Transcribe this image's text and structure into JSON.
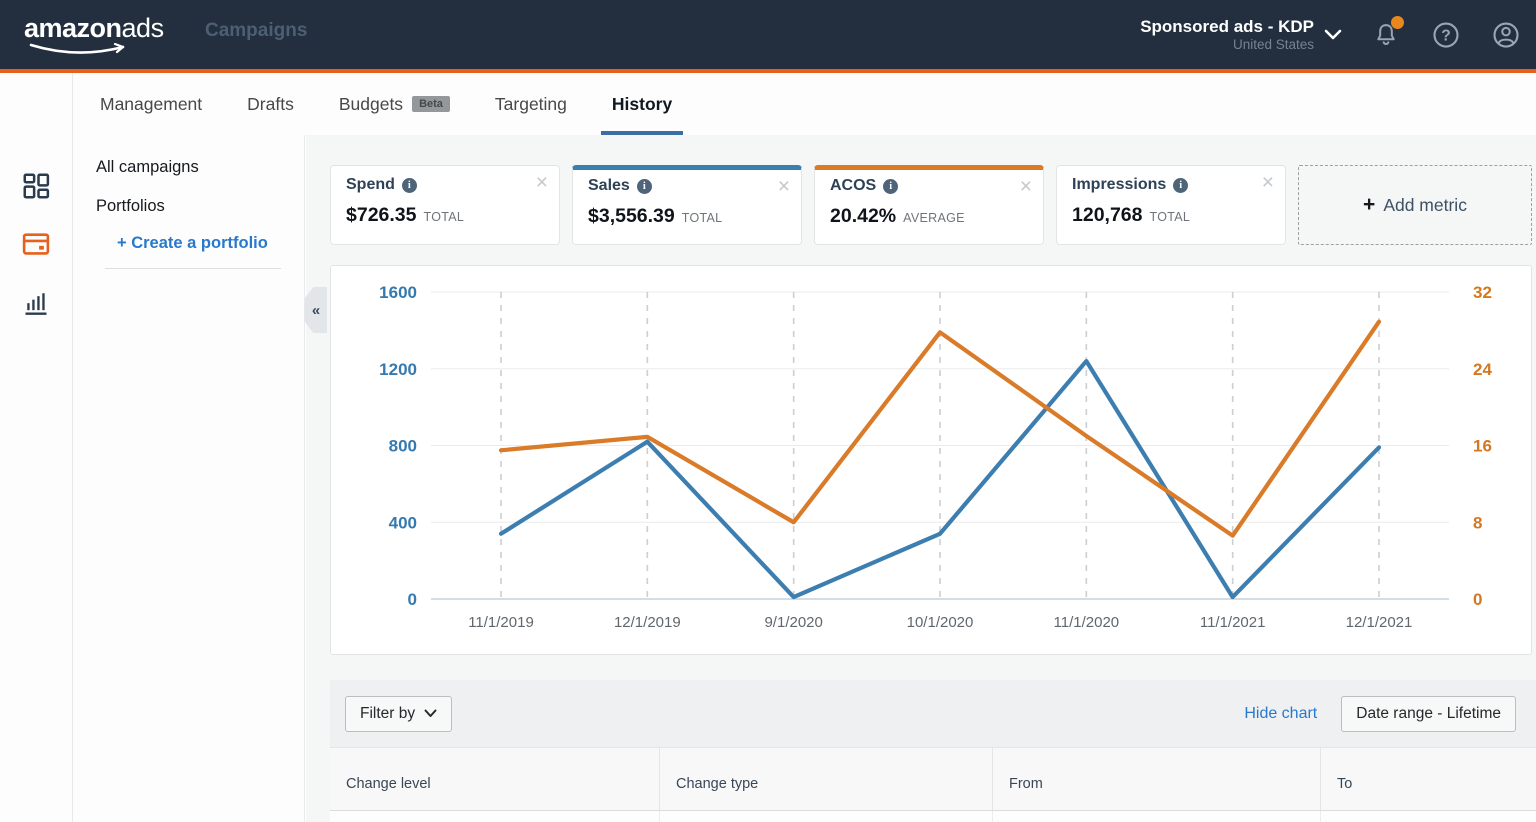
{
  "navbar": {
    "logo_amazon": "amazon",
    "logo_ads": "ads",
    "app_title": "Campaigns",
    "account_name": "Sponsored ads - KDP",
    "account_region": "United States"
  },
  "tabs": [
    {
      "label": "Management"
    },
    {
      "label": "Drafts"
    },
    {
      "label": "Budgets",
      "beta": "Beta"
    },
    {
      "label": "Targeting"
    },
    {
      "label": "History"
    }
  ],
  "sidebar": {
    "all_campaigns": "All campaigns",
    "portfolios": "Portfolios",
    "create_portfolio": "+ Create a portfolio"
  },
  "metrics": [
    {
      "name": "Spend",
      "value": "$726.35",
      "unit": "TOTAL"
    },
    {
      "name": "Sales",
      "value": "$3,556.39",
      "unit": "TOTAL"
    },
    {
      "name": "ACOS",
      "value": "20.42%",
      "unit": "AVERAGE"
    },
    {
      "name": "Impressions",
      "value": "120,768",
      "unit": "TOTAL"
    }
  ],
  "add_metric": {
    "plus": "+",
    "label": "Add metric"
  },
  "chart_data": {
    "type": "line",
    "x": [
      "11/1/2019",
      "12/1/2019",
      "9/1/2020",
      "10/1/2020",
      "11/1/2020",
      "11/1/2021",
      "12/1/2021"
    ],
    "series": [
      {
        "name": "Sales",
        "axis": "left",
        "color": "#3d7eb0",
        "values": [
          340,
          820,
          10,
          340,
          1240,
          10,
          790
        ]
      },
      {
        "name": "ACOS",
        "axis": "right",
        "color": "#d97b28",
        "values": [
          15.5,
          16.9,
          8,
          27.8,
          17,
          6.6,
          28.9
        ]
      }
    ],
    "left_axis": {
      "range": [
        0,
        1600
      ],
      "ticks": [
        0,
        400,
        800,
        1200,
        1600
      ],
      "color": "#3579ae"
    },
    "right_axis": {
      "range": [
        0,
        32
      ],
      "ticks": [
        0,
        8,
        16,
        24,
        32
      ],
      "color": "#d4781f"
    },
    "grid": true,
    "legend_position": "none"
  },
  "toolbar": {
    "filter_label": "Filter by",
    "hide_chart_label": "Hide chart",
    "date_range_label": "Date range - Lifetime"
  },
  "table": {
    "headers": [
      "Change level",
      "Change type",
      "From",
      "To"
    ]
  },
  "icons": {
    "close": "×",
    "collapse": "«"
  },
  "colors": {
    "nav_bg": "#232f3e",
    "accent_orange": "#e8611c",
    "notification_dot": "#e8871d",
    "sales_blue": "#3d7eb0",
    "acos_orange": "#d97b28",
    "link_blue": "#2879cc",
    "tab_underline": "#3b6ea5"
  }
}
